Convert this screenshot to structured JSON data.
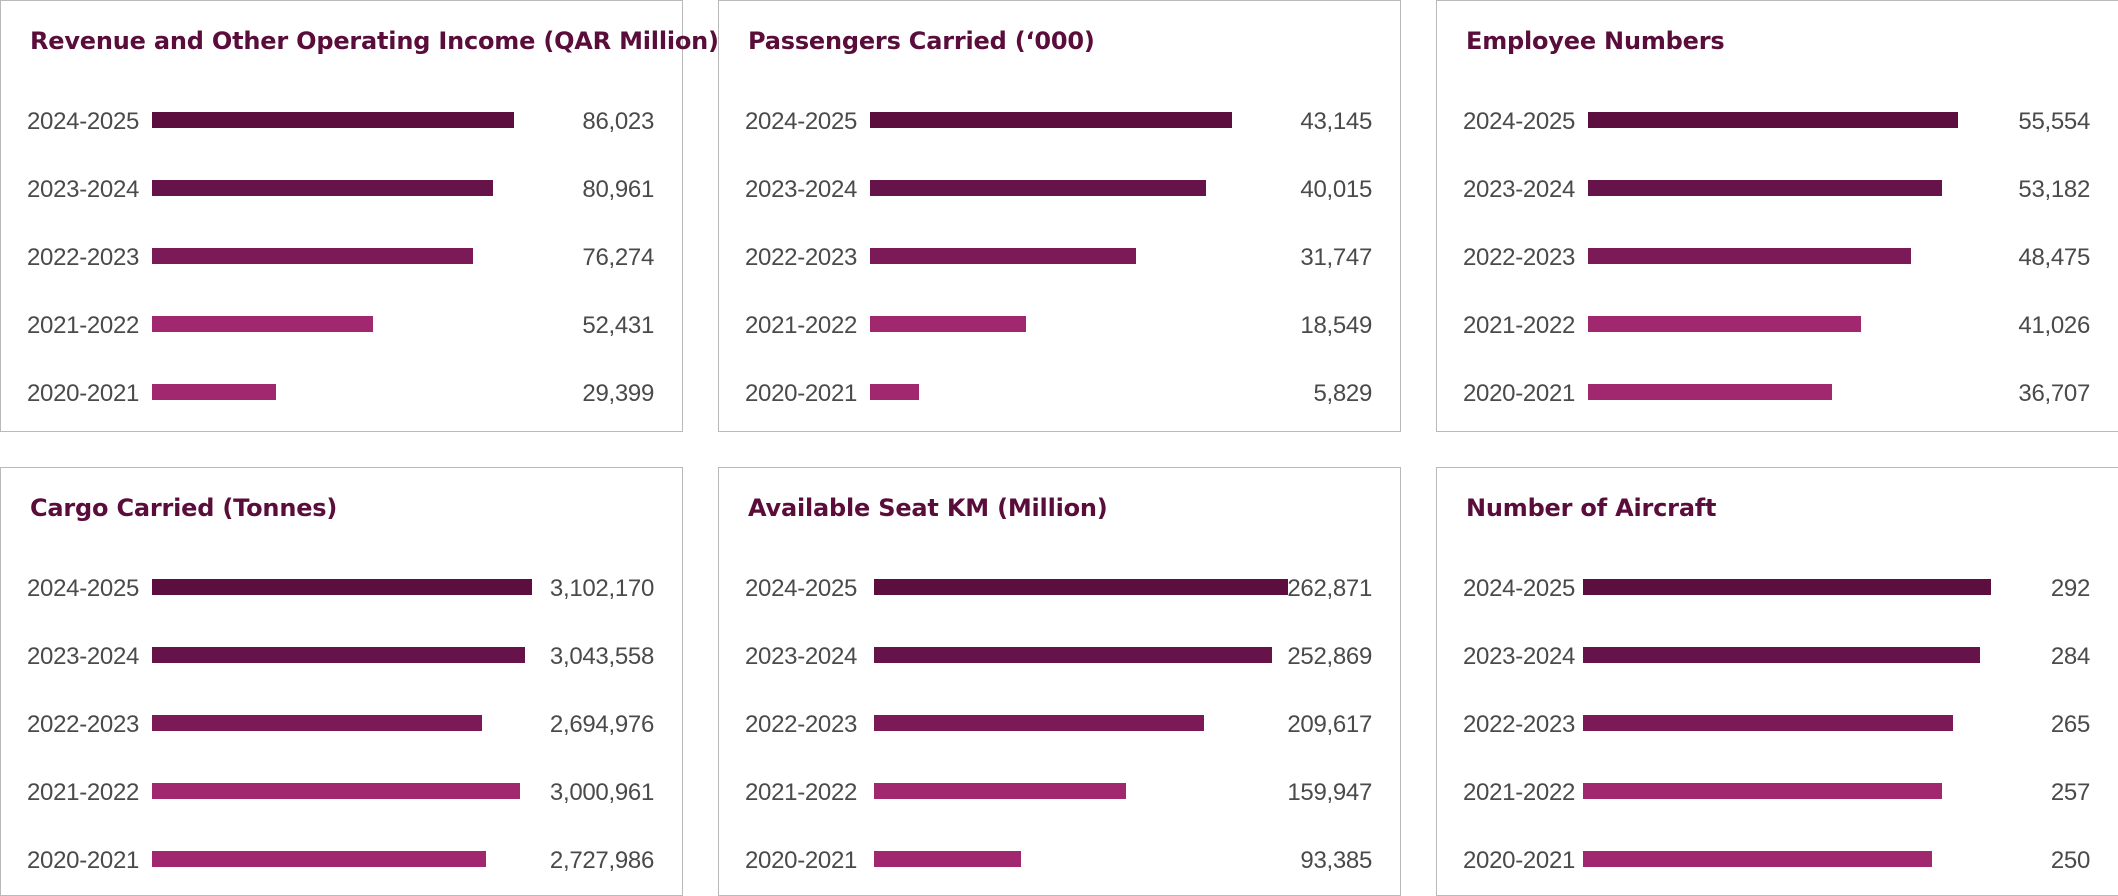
{
  "colors": {
    "title": "#5a0d3b",
    "series_by_row": [
      "#5c0f3e",
      "#661349",
      "#7b1a57",
      "#a1276e",
      "#a1276e"
    ]
  },
  "chart_data": [
    {
      "type": "bar",
      "title": "Revenue and Other Operating Income (QAR Million)",
      "categories": [
        "2024-2025",
        "2023-2024",
        "2022-2023",
        "2021-2022",
        "2020-2021"
      ],
      "values": [
        86023,
        80961,
        76274,
        52431,
        29399
      ],
      "value_labels": [
        "86,023",
        "80,961",
        "76,274",
        "52,431",
        "29,399"
      ],
      "xlim": [
        0,
        86023
      ]
    },
    {
      "type": "bar",
      "title": "Passengers Carried (‘000)",
      "categories": [
        "2024-2025",
        "2023-2024",
        "2022-2023",
        "2021-2022",
        "2020-2021"
      ],
      "values": [
        43145,
        40015,
        31747,
        18549,
        5829
      ],
      "value_labels": [
        "43,145",
        "40,015",
        "31,747",
        "18,549",
        "5,829"
      ],
      "xlim": [
        0,
        43145
      ]
    },
    {
      "type": "bar",
      "title": "Employee Numbers",
      "categories": [
        "2024-2025",
        "2023-2024",
        "2022-2023",
        "2021-2022",
        "2020-2021"
      ],
      "values": [
        55554,
        53182,
        48475,
        41026,
        36707
      ],
      "value_labels": [
        "55,554",
        "53,182",
        "48,475",
        "41,026",
        "36,707"
      ],
      "xlim": [
        0,
        55554
      ]
    },
    {
      "type": "bar",
      "title": "Cargo Carried (Tonnes)",
      "categories": [
        "2024-2025",
        "2023-2024",
        "2022-2023",
        "2021-2022",
        "2020-2021"
      ],
      "values": [
        3102170,
        3043558,
        2694976,
        3000961,
        2727986
      ],
      "value_labels": [
        "3,102,170",
        "3,043,558",
        "2,694,976",
        "3,000,961",
        "2,727,986"
      ],
      "xlim": [
        0,
        3102170
      ]
    },
    {
      "type": "bar",
      "title": "Available Seat KM (Million)",
      "categories": [
        "2024-2025",
        "2023-2024",
        "2022-2023",
        "2021-2022",
        "2020-2021"
      ],
      "values": [
        262871,
        252869,
        209617,
        159947,
        93385
      ],
      "value_labels": [
        "262,871",
        "252,869",
        "209,617",
        "159,947",
        "93,385"
      ],
      "xlim": [
        0,
        262871
      ]
    },
    {
      "type": "bar",
      "title": "Number of Aircraft",
      "categories": [
        "2024-2025",
        "2023-2024",
        "2022-2023",
        "2021-2022",
        "2020-2021"
      ],
      "values": [
        292,
        284,
        265,
        257,
        250
      ],
      "value_labels": [
        "292",
        "284",
        "265",
        "257",
        "250"
      ],
      "xlim": [
        0,
        292
      ]
    }
  ]
}
